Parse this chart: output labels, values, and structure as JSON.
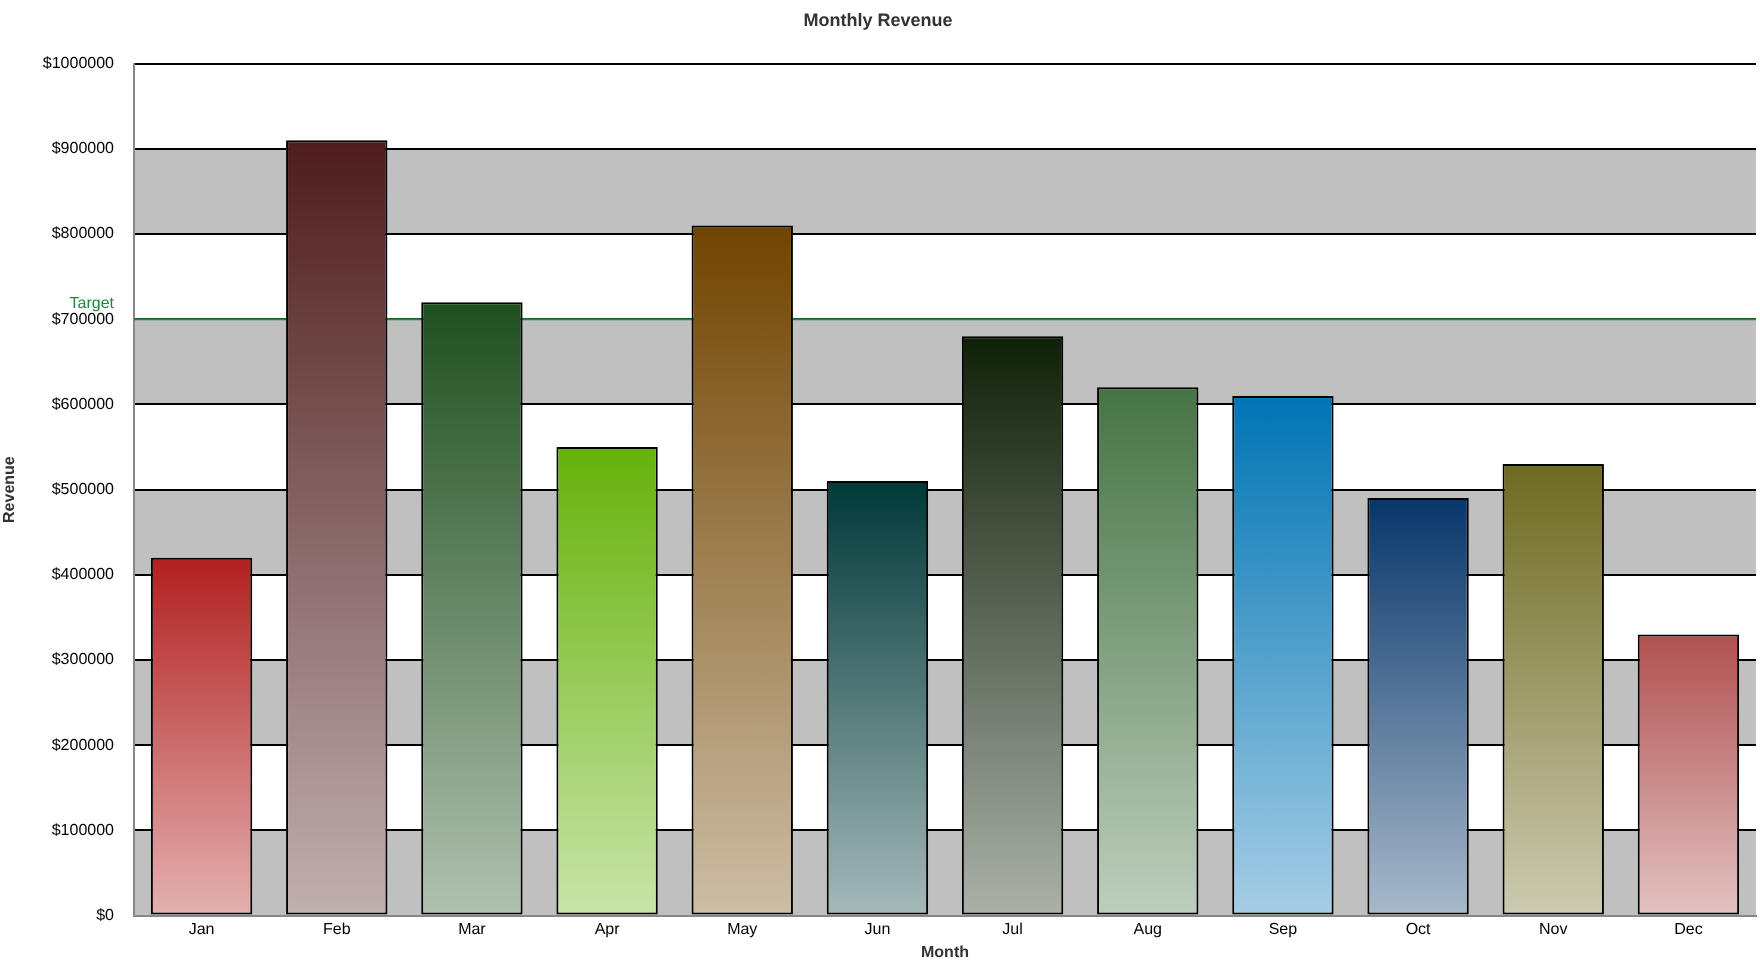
{
  "chart_data": {
    "type": "bar",
    "title": "Monthly Revenue",
    "xlabel": "Month",
    "ylabel": "Revenue",
    "categories": [
      "Jan",
      "Feb",
      "Mar",
      "Apr",
      "May",
      "Jun",
      "Jul",
      "Aug",
      "Sep",
      "Oct",
      "Nov",
      "Dec"
    ],
    "values": [
      420000,
      910000,
      720000,
      550000,
      810000,
      510000,
      680000,
      620000,
      610000,
      490000,
      530000,
      330000
    ],
    "colors": [
      "#b22020",
      "#4e1c1c",
      "#1f4f1f",
      "#66b20a",
      "#714400",
      "#003838",
      "#0f2008",
      "#467444",
      "#0074b4",
      "#08366a",
      "#6e6a20",
      "#b05050"
    ],
    "ylim": [
      0,
      1000000
    ],
    "yticks": [
      {
        "value": 0,
        "label": "$0"
      },
      {
        "value": 100000,
        "label": "$100000"
      },
      {
        "value": 200000,
        "label": "$200000"
      },
      {
        "value": 300000,
        "label": "$300000"
      },
      {
        "value": 400000,
        "label": "$400000"
      },
      {
        "value": 500000,
        "label": "$500000"
      },
      {
        "value": 600000,
        "label": "$600000"
      },
      {
        "value": 700000,
        "label": "$700000"
      },
      {
        "value": 800000,
        "label": "$800000"
      },
      {
        "value": 900000,
        "label": "$900000"
      },
      {
        "value": 1000000,
        "label": "$1000000"
      }
    ],
    "grid": "y",
    "legend": false,
    "ref_lines": [
      {
        "axis": "y",
        "value": 700000,
        "label": "Target",
        "color": "#1a8a3a"
      }
    ],
    "bands": [
      {
        "axis": "y",
        "from": 0,
        "to": 100000,
        "color": "#c0c0c0"
      },
      {
        "axis": "y",
        "from": 200000,
        "to": 300000,
        "color": "#c0c0c0"
      },
      {
        "axis": "y",
        "from": 400000,
        "to": 500000,
        "color": "#c0c0c0"
      },
      {
        "axis": "y",
        "from": 600000,
        "to": 700000,
        "color": "#c0c0c0"
      },
      {
        "axis": "y",
        "from": 800000,
        "to": 900000,
        "color": "#c0c0c0"
      }
    ]
  }
}
